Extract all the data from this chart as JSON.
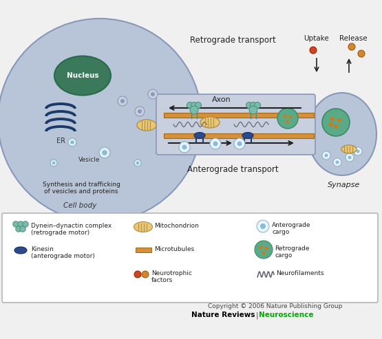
{
  "bg_color": "#f0f0f0",
  "cell_body_color": "#b8c4d8",
  "axon_color": "#c8d0e0",
  "synapse_color": "#b8c4d8",
  "nucleus_color": "#3a7a5a",
  "er_color": "#1a3a6a",
  "microtubule_color": "#d4913a",
  "arrow_color": "#2a2a2a",
  "legend_bg": "#ffffff",
  "labels": {
    "nucleus": "Nucleus",
    "er": "ER",
    "vesicle": "Vesicle",
    "cell_body": "Cell body",
    "axon": "Axon",
    "retrograde": "Retrograde transport",
    "anterograde": "Anterograde transport",
    "uptake": "Uptake",
    "release": "Release",
    "synapse": "Synapse",
    "synthesis": "Synthesis and trafficking\nof vesicles and proteins"
  },
  "copyright": "Copyright © 2006 Nature Publishing Group",
  "journal": "Nature Reviews",
  "journal_color": "#000000",
  "neuroscience": "Neuroscience",
  "neuroscience_color": "#00aa00"
}
